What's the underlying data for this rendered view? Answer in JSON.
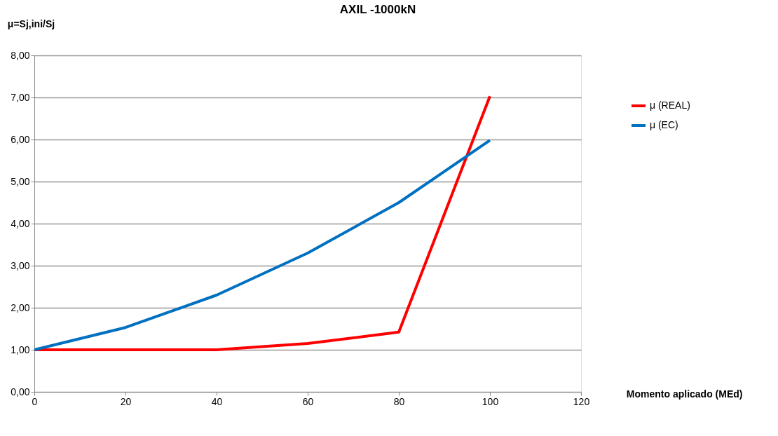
{
  "chart_data": {
    "type": "line",
    "title": "AXIL -1000kN",
    "xlabel": "Momento aplicado (MEd)",
    "ylabel": "μ=Sj,ini/Sj",
    "x": [
      0,
      20,
      40,
      60,
      80,
      100
    ],
    "series": [
      {
        "name": "μ (REAL)",
        "color": "#ff0000",
        "values": [
          1.0,
          1.0,
          1.0,
          1.15,
          1.42,
          7.03
        ]
      },
      {
        "name": "μ (EC)",
        "color": "#0070c0",
        "values": [
          1.0,
          1.53,
          2.3,
          3.3,
          4.5,
          5.98
        ]
      }
    ],
    "xlim": [
      0,
      120
    ],
    "xticks": [
      0,
      20,
      40,
      60,
      80,
      100,
      120
    ],
    "ylim": [
      0,
      8
    ],
    "yticks": [
      {
        "value": 0,
        "label": "0,00"
      },
      {
        "value": 1,
        "label": "1,00"
      },
      {
        "value": 2,
        "label": "2,00"
      },
      {
        "value": 3,
        "label": "3,00"
      },
      {
        "value": 4,
        "label": "4,00"
      },
      {
        "value": 5,
        "label": "5,00"
      },
      {
        "value": 6,
        "label": "6,00"
      },
      {
        "value": 7,
        "label": "7,00"
      },
      {
        "value": 8,
        "label": "8,00"
      }
    ],
    "grid": "y",
    "legend": "right",
    "marker": "none",
    "line_style": "solid"
  }
}
